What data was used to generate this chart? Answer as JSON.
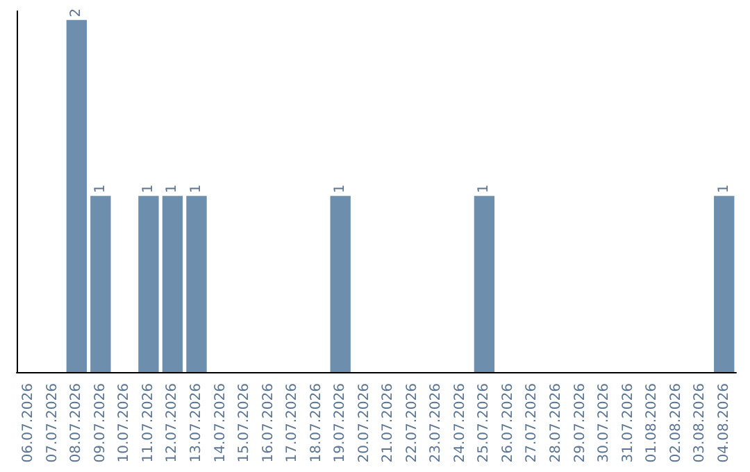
{
  "chart_data": {
    "type": "bar",
    "categories": [
      "06.07.2026",
      "07.07.2026",
      "08.07.2026",
      "09.07.2026",
      "10.07.2026",
      "11.07.2026",
      "12.07.2026",
      "13.07.2026",
      "14.07.2026",
      "15.07.2026",
      "16.07.2026",
      "17.07.2026",
      "18.07.2026",
      "19.07.2026",
      "20.07.2026",
      "21.07.2026",
      "22.07.2026",
      "23.07.2026",
      "24.07.2026",
      "25.07.2026",
      "26.07.2026",
      "27.07.2026",
      "28.07.2026",
      "29.07.2026",
      "30.07.2026",
      "31.07.2026",
      "01.08.2026",
      "02.08.2026",
      "03.08.2026",
      "04.08.2026"
    ],
    "values": [
      0,
      0,
      2,
      1,
      0,
      1,
      1,
      1,
      0,
      0,
      0,
      0,
      0,
      1,
      0,
      0,
      0,
      0,
      0,
      1,
      0,
      0,
      0,
      0,
      0,
      0,
      0,
      0,
      0,
      1
    ],
    "value_labels": [
      null,
      null,
      "2",
      "1",
      null,
      "1",
      "1",
      "1",
      null,
      null,
      null,
      null,
      null,
      "1",
      null,
      null,
      null,
      null,
      null,
      "1",
      null,
      null,
      null,
      null,
      null,
      null,
      null,
      null,
      null,
      "1"
    ],
    "color": "#6d8fad",
    "ylim": [
      0,
      2.05
    ],
    "tick_labels": "x"
  }
}
